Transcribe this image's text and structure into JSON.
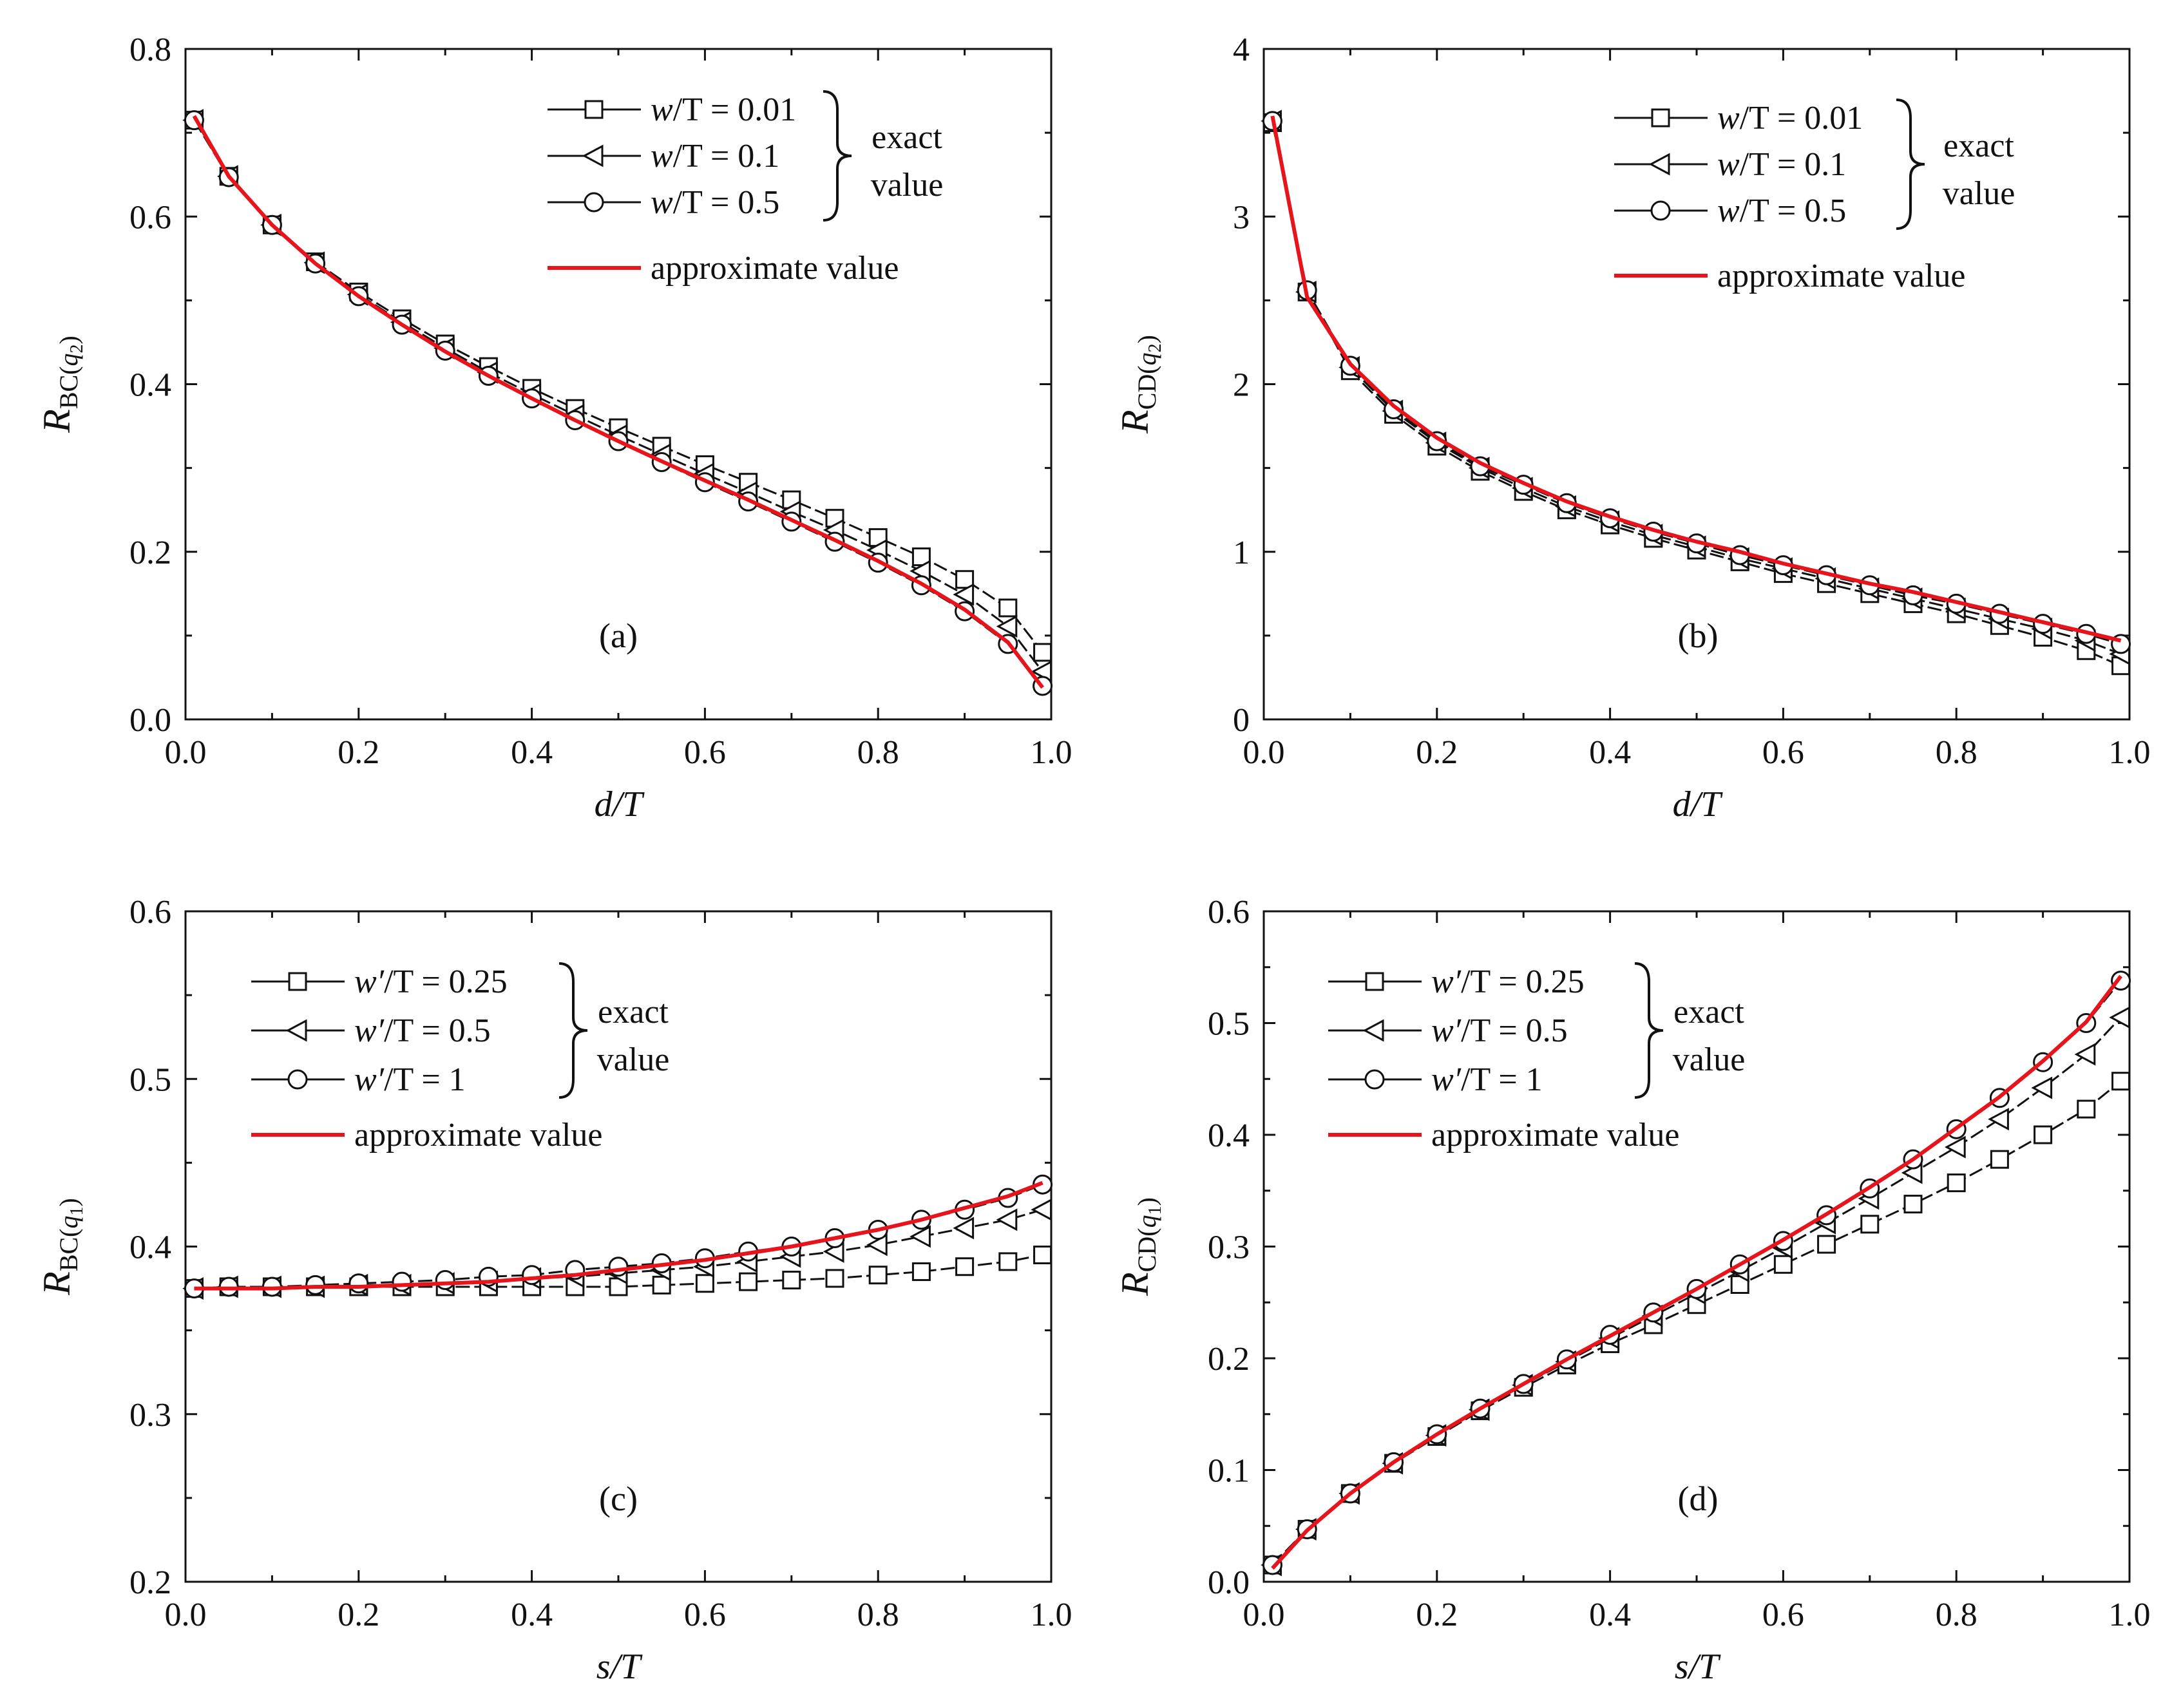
{
  "figure": {
    "colors": {
      "exact": "#111111",
      "approx": "#e8141b",
      "marker_fill": "#ffffff",
      "axis": "#111111"
    },
    "legend_text": {
      "exact": "exact",
      "value": "value",
      "approximate": "approximate value"
    }
  },
  "chart_data": [
    {
      "type": "line",
      "panel_label": "(a)",
      "xlabel": "d/T",
      "ylabel_main": "R",
      "ylabel_sub": "BC(",
      "ylabel_var": "q",
      "ylabel_var_sub": "2",
      "xlim": [
        0,
        1.0
      ],
      "ylim": [
        0,
        0.8
      ],
      "xticks": [
        "0.0",
        "0.2",
        "0.4",
        "0.6",
        "0.8",
        "1.0"
      ],
      "yticks": [
        "0.0",
        "0.2",
        "0.4",
        "0.6",
        "0.8"
      ],
      "x": [
        0.01,
        0.05,
        0.1,
        0.15,
        0.2,
        0.25,
        0.3,
        0.35,
        0.4,
        0.45,
        0.5,
        0.55,
        0.6,
        0.65,
        0.7,
        0.75,
        0.8,
        0.85,
        0.9,
        0.95,
        0.99
      ],
      "series": [
        {
          "name": "w/T = 0.01",
          "legend_var": "w",
          "legend_rest": "/T = 0.01",
          "marker": "square",
          "values": [
            0.715,
            0.648,
            0.59,
            0.546,
            0.51,
            0.478,
            0.448,
            0.421,
            0.395,
            0.371,
            0.348,
            0.326,
            0.304,
            0.283,
            0.262,
            0.24,
            0.217,
            0.194,
            0.167,
            0.133,
            0.08
          ]
        },
        {
          "name": "w/T = 0.1",
          "legend_var": "w",
          "legend_rest": "/T = 0.1",
          "marker": "triangle-left",
          "values": [
            0.715,
            0.648,
            0.59,
            0.545,
            0.507,
            0.474,
            0.443,
            0.414,
            0.388,
            0.363,
            0.339,
            0.316,
            0.293,
            0.271,
            0.248,
            0.226,
            0.202,
            0.177,
            0.149,
            0.111,
            0.057
          ]
        },
        {
          "name": "w/T = 0.5",
          "legend_var": "w",
          "legend_rest": "/T = 0.5",
          "marker": "circle",
          "values": [
            0.715,
            0.647,
            0.59,
            0.544,
            0.505,
            0.471,
            0.44,
            0.41,
            0.383,
            0.357,
            0.332,
            0.307,
            0.283,
            0.26,
            0.236,
            0.212,
            0.187,
            0.16,
            0.129,
            0.09,
            0.04
          ]
        },
        {
          "name": "approximate value",
          "marker": "none",
          "approx": true,
          "values": [
            0.72,
            0.648,
            0.59,
            0.544,
            0.505,
            0.471,
            0.439,
            0.41,
            0.383,
            0.357,
            0.332,
            0.308,
            0.285,
            0.262,
            0.238,
            0.214,
            0.189,
            0.162,
            0.131,
            0.092,
            0.038
          ]
        }
      ]
    },
    {
      "type": "line",
      "panel_label": "(b)",
      "xlabel": "d/T",
      "ylabel_main": "R",
      "ylabel_sub": "CD(",
      "ylabel_var": "q",
      "ylabel_var_sub": "2",
      "xlim": [
        0,
        1.0
      ],
      "ylim": [
        0,
        4
      ],
      "xticks": [
        "0.0",
        "0.2",
        "0.4",
        "0.6",
        "0.8",
        "1.0"
      ],
      "yticks": [
        "0",
        "1",
        "2",
        "3",
        "4"
      ],
      "x": [
        0.01,
        0.05,
        0.1,
        0.15,
        0.2,
        0.25,
        0.3,
        0.35,
        0.4,
        0.45,
        0.5,
        0.55,
        0.6,
        0.65,
        0.7,
        0.75,
        0.8,
        0.85,
        0.9,
        0.95,
        0.99
      ],
      "series": [
        {
          "name": "w/T = 0.01",
          "legend_var": "w",
          "legend_rest": "/T = 0.01",
          "marker": "square",
          "values": [
            3.56,
            2.55,
            2.08,
            1.82,
            1.63,
            1.48,
            1.36,
            1.25,
            1.16,
            1.08,
            1.01,
            0.94,
            0.87,
            0.81,
            0.75,
            0.69,
            0.63,
            0.56,
            0.49,
            0.41,
            0.32
          ]
        },
        {
          "name": "w/T = 0.1",
          "legend_var": "w",
          "legend_rest": "/T = 0.1",
          "marker": "triangle-left",
          "values": [
            3.57,
            2.55,
            2.1,
            1.84,
            1.65,
            1.5,
            1.38,
            1.27,
            1.18,
            1.1,
            1.03,
            0.96,
            0.9,
            0.84,
            0.78,
            0.72,
            0.66,
            0.6,
            0.54,
            0.47,
            0.39
          ]
        },
        {
          "name": "w/T = 0.5",
          "legend_var": "w",
          "legend_rest": "/T = 0.5",
          "marker": "circle",
          "values": [
            3.57,
            2.56,
            2.11,
            1.85,
            1.66,
            1.51,
            1.4,
            1.29,
            1.2,
            1.12,
            1.05,
            0.98,
            0.92,
            0.86,
            0.8,
            0.74,
            0.69,
            0.63,
            0.57,
            0.51,
            0.45
          ]
        },
        {
          "name": "approximate value",
          "marker": "none",
          "approx": true,
          "values": [
            3.6,
            2.52,
            2.12,
            1.87,
            1.68,
            1.53,
            1.41,
            1.3,
            1.21,
            1.13,
            1.06,
            1.0,
            0.93,
            0.87,
            0.81,
            0.76,
            0.7,
            0.64,
            0.58,
            0.52,
            0.47
          ]
        }
      ]
    },
    {
      "type": "line",
      "panel_label": "(c)",
      "xlabel": "s/T",
      "ylabel_main": "R",
      "ylabel_sub": "BC(",
      "ylabel_var": "q",
      "ylabel_var_sub": "1",
      "xlim": [
        0,
        1.0
      ],
      "ylim": [
        0.2,
        0.6
      ],
      "xticks": [
        "0.0",
        "0.2",
        "0.4",
        "0.6",
        "0.8",
        "1.0"
      ],
      "yticks": [
        "0.2",
        "0.3",
        "0.4",
        "0.5",
        "0.6"
      ],
      "x": [
        0.01,
        0.05,
        0.1,
        0.15,
        0.2,
        0.25,
        0.3,
        0.35,
        0.4,
        0.45,
        0.5,
        0.55,
        0.6,
        0.65,
        0.7,
        0.75,
        0.8,
        0.85,
        0.9,
        0.95,
        0.99
      ],
      "series": [
        {
          "name": "w'/T = 0.25",
          "legend_var": "w′",
          "legend_rest": "/T = 0.25",
          "marker": "square",
          "values": [
            0.375,
            0.376,
            0.376,
            0.376,
            0.376,
            0.376,
            0.376,
            0.376,
            0.376,
            0.376,
            0.376,
            0.377,
            0.378,
            0.379,
            0.38,
            0.381,
            0.383,
            0.385,
            0.388,
            0.391,
            0.395
          ]
        },
        {
          "name": "w'/T = 0.5",
          "legend_var": "w′",
          "legend_rest": "/T = 0.5",
          "marker": "triangle-left",
          "values": [
            0.375,
            0.376,
            0.376,
            0.376,
            0.377,
            0.377,
            0.378,
            0.379,
            0.381,
            0.382,
            0.384,
            0.386,
            0.388,
            0.391,
            0.394,
            0.397,
            0.401,
            0.406,
            0.411,
            0.416,
            0.422
          ]
        },
        {
          "name": "w'/T = 1",
          "legend_var": "w′",
          "legend_rest": "/T = 1",
          "marker": "circle",
          "values": [
            0.375,
            0.376,
            0.376,
            0.377,
            0.378,
            0.379,
            0.38,
            0.382,
            0.383,
            0.386,
            0.388,
            0.39,
            0.393,
            0.397,
            0.4,
            0.405,
            0.41,
            0.416,
            0.422,
            0.429,
            0.437
          ]
        },
        {
          "name": "approximate value",
          "marker": "none",
          "approx": true,
          "values": [
            0.375,
            0.375,
            0.375,
            0.376,
            0.376,
            0.377,
            0.378,
            0.379,
            0.381,
            0.383,
            0.386,
            0.389,
            0.392,
            0.396,
            0.4,
            0.405,
            0.41,
            0.416,
            0.423,
            0.43,
            0.438
          ]
        }
      ]
    },
    {
      "type": "line",
      "panel_label": "(d)",
      "xlabel": "s/T",
      "ylabel_main": "R",
      "ylabel_sub": "CD(",
      "ylabel_var": "q",
      "ylabel_var_sub": "1",
      "xlim": [
        0,
        1.0
      ],
      "ylim": [
        0,
        0.6
      ],
      "xticks": [
        "0.0",
        "0.2",
        "0.4",
        "0.6",
        "0.8",
        "1.0"
      ],
      "yticks": [
        "0.0",
        "0.1",
        "0.2",
        "0.3",
        "0.4",
        "0.5",
        "0.6"
      ],
      "x": [
        0.01,
        0.05,
        0.1,
        0.15,
        0.2,
        0.25,
        0.3,
        0.35,
        0.4,
        0.45,
        0.5,
        0.55,
        0.6,
        0.65,
        0.7,
        0.75,
        0.8,
        0.85,
        0.9,
        0.95,
        0.99
      ],
      "series": [
        {
          "name": "w'/T = 0.25",
          "legend_var": "w′",
          "legend_rest": "/T = 0.25",
          "marker": "square",
          "values": [
            0.015,
            0.047,
            0.079,
            0.106,
            0.13,
            0.153,
            0.174,
            0.194,
            0.213,
            0.23,
            0.248,
            0.266,
            0.284,
            0.302,
            0.32,
            0.338,
            0.357,
            0.378,
            0.4,
            0.423,
            0.448
          ]
        },
        {
          "name": "w'/T = 0.5",
          "legend_var": "w′",
          "legend_rest": "/T = 0.5",
          "marker": "triangle-left",
          "values": [
            0.015,
            0.047,
            0.079,
            0.106,
            0.131,
            0.154,
            0.176,
            0.197,
            0.218,
            0.238,
            0.258,
            0.278,
            0.299,
            0.321,
            0.343,
            0.366,
            0.389,
            0.414,
            0.442,
            0.472,
            0.505
          ]
        },
        {
          "name": "w'/T = 1",
          "legend_var": "w′",
          "legend_rest": "/T = 1",
          "marker": "circle",
          "values": [
            0.015,
            0.047,
            0.079,
            0.107,
            0.132,
            0.155,
            0.177,
            0.199,
            0.221,
            0.241,
            0.262,
            0.284,
            0.305,
            0.328,
            0.352,
            0.378,
            0.405,
            0.433,
            0.465,
            0.5,
            0.538
          ]
        },
        {
          "name": "approximate value",
          "marker": "none",
          "approx": true,
          "values": [
            0.012,
            0.046,
            0.079,
            0.107,
            0.132,
            0.155,
            0.177,
            0.199,
            0.22,
            0.241,
            0.262,
            0.284,
            0.306,
            0.329,
            0.353,
            0.378,
            0.406,
            0.434,
            0.466,
            0.501,
            0.542
          ]
        }
      ]
    }
  ]
}
